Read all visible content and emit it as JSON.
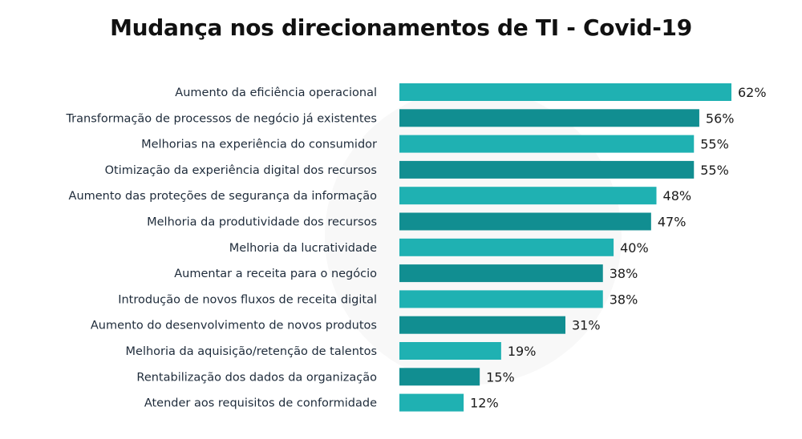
{
  "chart_data": {
    "type": "bar",
    "orientation": "horizontal",
    "title": "Mudança nos direcionamentos de TI - Covid-19",
    "value_suffix": "%",
    "categories": [
      "Aumento da eficiência operacional",
      "Transformação de processos de negócio já existentes",
      "Melhorias na experiência do consumidor",
      "Otimização da experiência digital dos recursos",
      "Aumento das proteções de segurança da informação",
      "Melhoria da produtividade dos recursos",
      "Melhoria da lucratividade",
      "Aumentar a receita para o negócio",
      "Introdução de novos fluxos de receita digital",
      "Aumento do desenvolvimento de novos produtos",
      "Melhoria da aquisição/retenção de talentos",
      "Rentabilização dos dados da organização",
      "Atender aos requisitos de conformidade"
    ],
    "values": [
      62,
      56,
      55,
      55,
      48,
      47,
      40,
      38,
      38,
      31,
      19,
      15,
      12
    ],
    "value_labels": [
      "62%",
      "56%",
      "55%",
      "55%",
      "48%",
      "47%",
      "40%",
      "38%",
      "38%",
      "31%",
      "19%",
      "15%",
      "12%"
    ],
    "colors": [
      "#1fb1b2",
      "#118e91"
    ],
    "xlim": [
      0,
      62
    ],
    "grid": false,
    "legend": "none"
  }
}
